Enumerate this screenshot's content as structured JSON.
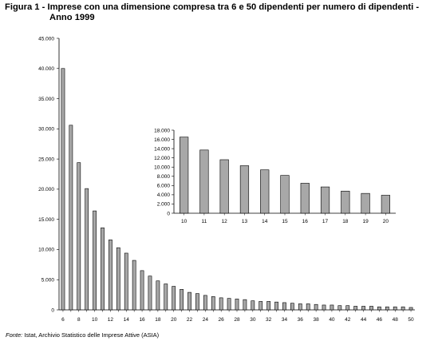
{
  "title": {
    "line1": "Figura 1 - Imprese con una dimensione compresa tra 6 e 50 dipendenti per numero di dipendenti -",
    "line2": "Anno 1999"
  },
  "source": {
    "prefix": "Fonte:",
    "text": " Istat, Archivio Statistico delle Imprese Attive (ASIA)"
  },
  "colors": {
    "bar": "#a8a8a8",
    "bar_stroke": "#000000",
    "axis": "#000000"
  },
  "chart_data": [
    {
      "type": "bar",
      "title": "",
      "xlabel": "",
      "ylabel": "",
      "ylim": [
        0,
        45000
      ],
      "yticks": [
        "0",
        "5.000",
        "10.000",
        "15.000",
        "20.000",
        "25.000",
        "30.000",
        "35.000",
        "40.000",
        "45.000"
      ],
      "ytick_values": [
        0,
        5000,
        10000,
        15000,
        20000,
        25000,
        30000,
        35000,
        40000,
        45000
      ],
      "xtick_labels": [
        "6",
        "8",
        "10",
        "12",
        "14",
        "16",
        "18",
        "20",
        "22",
        "24",
        "26",
        "28",
        "30",
        "32",
        "34",
        "36",
        "38",
        "40",
        "42",
        "44",
        "46",
        "48",
        "50"
      ],
      "categories": [
        6,
        7,
        8,
        9,
        10,
        11,
        12,
        13,
        14,
        15,
        16,
        17,
        18,
        19,
        20,
        21,
        22,
        23,
        24,
        25,
        26,
        27,
        28,
        29,
        30,
        31,
        32,
        33,
        34,
        35,
        36,
        37,
        38,
        39,
        40,
        41,
        42,
        43,
        44,
        45,
        46,
        47,
        48,
        49,
        50
      ],
      "values": [
        40000,
        30600,
        24400,
        20100,
        16400,
        13600,
        11600,
        10300,
        9400,
        8200,
        6500,
        5600,
        4800,
        4300,
        3900,
        3400,
        2900,
        2700,
        2400,
        2200,
        2000,
        1900,
        1800,
        1700,
        1500,
        1400,
        1400,
        1300,
        1200,
        1100,
        1000,
        1000,
        900,
        800,
        800,
        700,
        700,
        600,
        600,
        600,
        500,
        500,
        500,
        500,
        400
      ],
      "grid": false,
      "legend": "none"
    },
    {
      "type": "bar",
      "title": "",
      "xlabel": "",
      "ylabel": "",
      "ylim": [
        0,
        18000
      ],
      "yticks": [
        "0",
        "2.000",
        "4.000",
        "6.000",
        "8.000",
        "10.000",
        "12.000",
        "14.000",
        "16.000",
        "18.000"
      ],
      "ytick_values": [
        0,
        2000,
        4000,
        6000,
        8000,
        10000,
        12000,
        14000,
        16000,
        18000
      ],
      "categories": [
        "10",
        "11",
        "12",
        "13",
        "14",
        "15",
        "16",
        "17",
        "18",
        "19",
        "20"
      ],
      "values": [
        16500,
        13700,
        11600,
        10300,
        9400,
        8200,
        6500,
        5700,
        4800,
        4300,
        3900
      ],
      "grid": false,
      "legend": "none"
    }
  ]
}
